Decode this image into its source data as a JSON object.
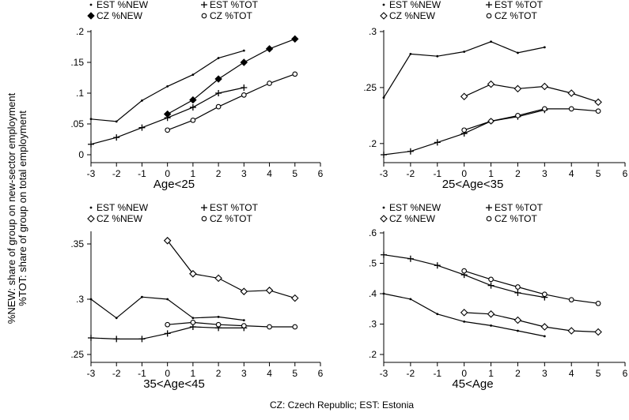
{
  "figure": {
    "ylabel_line1": "%NEW: share of group on new-sector employment",
    "ylabel_line2": "%TOT: share of group on total employment",
    "caption": "CZ: Czech Republic; EST: Estonia"
  },
  "chart_data": [
    {
      "type": "line",
      "title": "Age<25",
      "xlim": [
        -3,
        6
      ],
      "xticks": [
        -3,
        -2,
        -1,
        0,
        1,
        2,
        3,
        4,
        5,
        6
      ],
      "ylim": [
        0,
        0.2
      ],
      "yticks": [
        0,
        0.05,
        0.1,
        0.15,
        0.2
      ],
      "ytick_labels": [
        "0",
        ".05",
        ".1",
        ".15",
        ".2"
      ],
      "legend": [
        "EST %NEW",
        "EST %TOT",
        "CZ %NEW",
        "CZ %TOT"
      ],
      "series": [
        {
          "name": "EST %NEW",
          "marker": "dot",
          "x": [
            -3,
            -2,
            -1,
            0,
            1,
            2,
            3
          ],
          "y": [
            0.058,
            0.054,
            0.088,
            0.111,
            0.13,
            0.157,
            0.169
          ]
        },
        {
          "name": "EST %TOT",
          "marker": "plus",
          "x": [
            -3,
            -2,
            -1,
            0,
            1,
            2,
            3
          ],
          "y": [
            0.017,
            0.028,
            0.044,
            0.06,
            0.077,
            0.1,
            0.109
          ]
        },
        {
          "name": "CZ %NEW",
          "marker": "diamond-filled",
          "x": [
            0,
            1,
            2,
            3,
            4,
            5
          ],
          "y": [
            0.066,
            0.089,
            0.123,
            0.15,
            0.172,
            0.188
          ]
        },
        {
          "name": "CZ %TOT",
          "marker": "circle",
          "x": [
            0,
            1,
            2,
            3,
            4,
            5
          ],
          "y": [
            0.04,
            0.056,
            0.078,
            0.097,
            0.116,
            0.131
          ]
        }
      ]
    },
    {
      "type": "line",
      "title": "25<Age<35",
      "xlim": [
        -3,
        6
      ],
      "xticks": [
        -3,
        -2,
        -1,
        0,
        1,
        2,
        3,
        4,
        5,
        6
      ],
      "ylim": [
        0.19,
        0.3
      ],
      "yticks": [
        0.2,
        0.25,
        0.3
      ],
      "ytick_labels": [
        ".2",
        ".25",
        ".3"
      ],
      "legend": [
        "EST %NEW",
        "EST %TOT",
        "CZ %NEW",
        "CZ %TOT"
      ],
      "series": [
        {
          "name": "EST %NEW",
          "marker": "dot",
          "x": [
            -3,
            -2,
            -1,
            0,
            1,
            2,
            3
          ],
          "y": [
            0.241,
            0.28,
            0.278,
            0.282,
            0.291,
            0.281,
            0.286
          ]
        },
        {
          "name": "EST %TOT",
          "marker": "plus",
          "x": [
            -3,
            -2,
            -1,
            0,
            1,
            2,
            3
          ],
          "y": [
            0.19,
            0.193,
            0.201,
            0.209,
            0.22,
            0.224,
            0.23
          ]
        },
        {
          "name": "CZ %NEW",
          "marker": "diamond",
          "x": [
            0,
            1,
            2,
            3,
            4,
            5
          ],
          "y": [
            0.242,
            0.253,
            0.249,
            0.251,
            0.245,
            0.237
          ]
        },
        {
          "name": "CZ %TOT",
          "marker": "circle",
          "x": [
            0,
            1,
            2,
            3,
            4,
            5
          ],
          "y": [
            0.212,
            0.22,
            0.225,
            0.231,
            0.231,
            0.229
          ]
        }
      ]
    },
    {
      "type": "line",
      "title": "35<Age<45",
      "xlim": [
        -3,
        6
      ],
      "xticks": [
        -3,
        -2,
        -1,
        0,
        1,
        2,
        3,
        4,
        5,
        6
      ],
      "ylim": [
        0.25,
        0.36
      ],
      "yticks": [
        0.25,
        0.3,
        0.35
      ],
      "ytick_labels": [
        ".25",
        ".3",
        ".35"
      ],
      "legend": [
        "EST %NEW",
        "EST %TOT",
        "CZ %NEW",
        "CZ %TOT"
      ],
      "series": [
        {
          "name": "EST %NEW",
          "marker": "dot",
          "x": [
            -3,
            -2,
            -1,
            0,
            1,
            2,
            3
          ],
          "y": [
            0.3,
            0.283,
            0.302,
            0.3,
            0.283,
            0.284,
            0.281
          ]
        },
        {
          "name": "EST %TOT",
          "marker": "plus",
          "x": [
            -3,
            -2,
            -1,
            0,
            1,
            2,
            3
          ],
          "y": [
            0.265,
            0.264,
            0.264,
            0.269,
            0.275,
            0.274,
            0.274
          ]
        },
        {
          "name": "CZ %NEW",
          "marker": "diamond",
          "x": [
            0,
            1,
            2,
            3,
            4,
            5
          ],
          "y": [
            0.353,
            0.323,
            0.319,
            0.307,
            0.308,
            0.301
          ]
        },
        {
          "name": "CZ %TOT",
          "marker": "circle",
          "x": [
            0,
            1,
            2,
            3,
            4,
            5
          ],
          "y": [
            0.277,
            0.279,
            0.277,
            0.276,
            0.275,
            0.275
          ]
        }
      ]
    },
    {
      "type": "line",
      "title": "45<Age",
      "xlim": [
        -3,
        6
      ],
      "xticks": [
        -3,
        -2,
        -1,
        0,
        1,
        2,
        3,
        4,
        5,
        6
      ],
      "ylim": [
        0.2,
        0.6
      ],
      "yticks": [
        0.2,
        0.3,
        0.4,
        0.5,
        0.6
      ],
      "ytick_labels": [
        ".2",
        ".3",
        ".4",
        ".5",
        ".6"
      ],
      "legend": [
        "EST %NEW",
        "EST %TOT",
        "CZ %NEW",
        "CZ %TOT"
      ],
      "series": [
        {
          "name": "EST %NEW",
          "marker": "dot",
          "x": [
            -3,
            -2,
            -1,
            0,
            1,
            2,
            3
          ],
          "y": [
            0.4,
            0.382,
            0.333,
            0.308,
            0.295,
            0.278,
            0.26
          ]
        },
        {
          "name": "EST %TOT",
          "marker": "plus",
          "x": [
            -3,
            -2,
            -1,
            0,
            1,
            2,
            3
          ],
          "y": [
            0.528,
            0.515,
            0.493,
            0.462,
            0.427,
            0.403,
            0.388
          ]
        },
        {
          "name": "CZ %NEW",
          "marker": "diamond",
          "x": [
            0,
            1,
            2,
            3,
            4,
            5
          ],
          "y": [
            0.338,
            0.333,
            0.313,
            0.291,
            0.278,
            0.274
          ]
        },
        {
          "name": "CZ %TOT",
          "marker": "circle",
          "x": [
            0,
            1,
            2,
            3,
            4,
            5
          ],
          "y": [
            0.475,
            0.447,
            0.422,
            0.398,
            0.38,
            0.368
          ]
        }
      ]
    }
  ]
}
